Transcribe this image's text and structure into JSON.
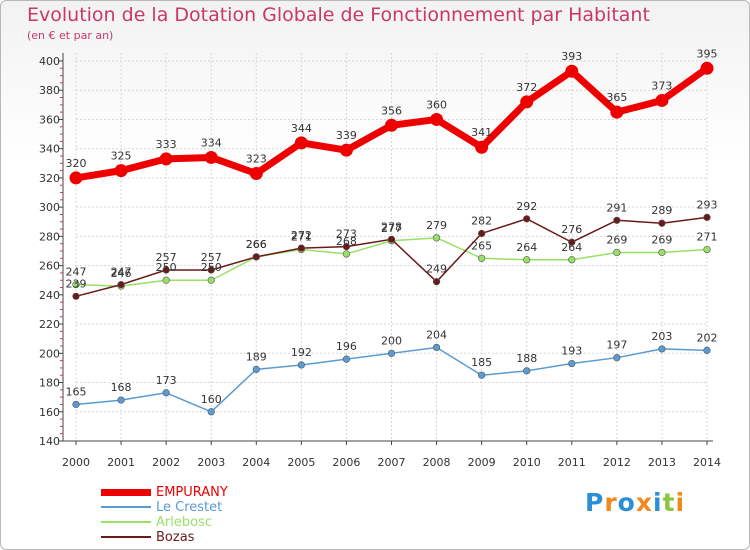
{
  "header": {
    "title": "Evolution de la Dotation Globale de Fonctionnement par Habitant",
    "subtitle": "(en € et par an)"
  },
  "chart_data": {
    "type": "line",
    "title": "Evolution de la Dotation Globale de Fonctionnement par Habitant",
    "subtitle": "(en € et par an)",
    "x": [
      "2000",
      "2001",
      "2002",
      "2003",
      "2004",
      "2005",
      "2006",
      "2007",
      "2008",
      "2009",
      "2010",
      "2011",
      "2012",
      "2013",
      "2014"
    ],
    "ylim": [
      140,
      400
    ],
    "yticks": [
      140,
      160,
      180,
      200,
      220,
      240,
      260,
      280,
      300,
      320,
      340,
      360,
      380,
      400
    ],
    "grid": true,
    "legend_position": "bottom-left",
    "series": [
      {
        "name": "EMPURANY",
        "color": "#ee0000",
        "values": [
          320,
          325,
          333,
          334,
          323,
          344,
          339,
          356,
          360,
          341,
          372,
          393,
          365,
          373,
          395
        ]
      },
      {
        "name": "Le Crestet",
        "color": "#5a9bd2",
        "values": [
          165,
          168,
          173,
          160,
          189,
          192,
          196,
          200,
          204,
          185,
          188,
          193,
          197,
          203,
          202
        ]
      },
      {
        "name": "Arlebosc",
        "color": "#99e066",
        "values": [
          247,
          246,
          250,
          250,
          266,
          271,
          268,
          277,
          279,
          265,
          264,
          264,
          269,
          269,
          271
        ]
      },
      {
        "name": "Bozas",
        "color": "#6b1a1a",
        "values": [
          239,
          247,
          257,
          257,
          266,
          272,
          273,
          278,
          249,
          282,
          292,
          276,
          291,
          289,
          293
        ]
      }
    ]
  },
  "logo": {
    "text": "Proxiti",
    "letters": [
      {
        "ch": "P",
        "color": "#2b8fd6"
      },
      {
        "ch": "r",
        "color": "#f08a1c"
      },
      {
        "ch": "o",
        "color": "#2b8fd6"
      },
      {
        "ch": "x",
        "color": "#f08a1c"
      },
      {
        "ch": "i",
        "color": "#2b8fd6"
      },
      {
        "ch": "t",
        "color": "#8cc63f"
      },
      {
        "ch": "i",
        "color": "#f08a1c"
      }
    ]
  }
}
